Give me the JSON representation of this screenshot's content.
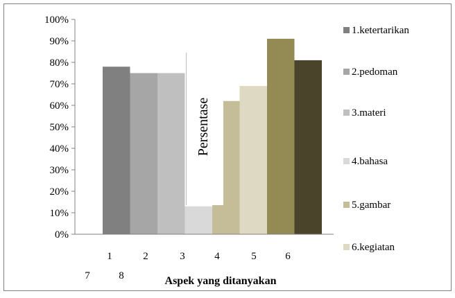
{
  "chart_data": {
    "type": "bar",
    "title": "",
    "xlabel": "Aspek yang ditanyakan",
    "ylabel": "Persentase",
    "ylim": [
      0,
      100
    ],
    "y_ticks": [
      "0%",
      "10%",
      "20%",
      "30%",
      "40%",
      "50%",
      "60%",
      "70%",
      "80%",
      "90%",
      "100%"
    ],
    "x_tick_labels_row1": [
      "1",
      "2",
      "3",
      "4",
      "5",
      "6"
    ],
    "x_tick_labels_row2": [
      "7",
      "8"
    ],
    "legend_position": "right",
    "grid": false,
    "series": [
      {
        "name": "1.ketertarikan",
        "value": 78,
        "color": "#808080"
      },
      {
        "name": "2.pedoman",
        "value": 75,
        "color": "#a6a6a6"
      },
      {
        "name": "3.materi",
        "value": 75,
        "color": "#bfbfbf"
      },
      {
        "name": "4.bahasa",
        "value": 13,
        "color": "#d9d9d9"
      },
      {
        "name": "5.gambar",
        "value": 62,
        "color": "#c4bd97"
      },
      {
        "name": "6.kegiatan",
        "value": 69,
        "color": "#ddd9c3"
      },
      {
        "name": "",
        "value": 91,
        "color": "#948a54"
      },
      {
        "name": "",
        "value": 81,
        "color": "#4a442a"
      }
    ]
  }
}
